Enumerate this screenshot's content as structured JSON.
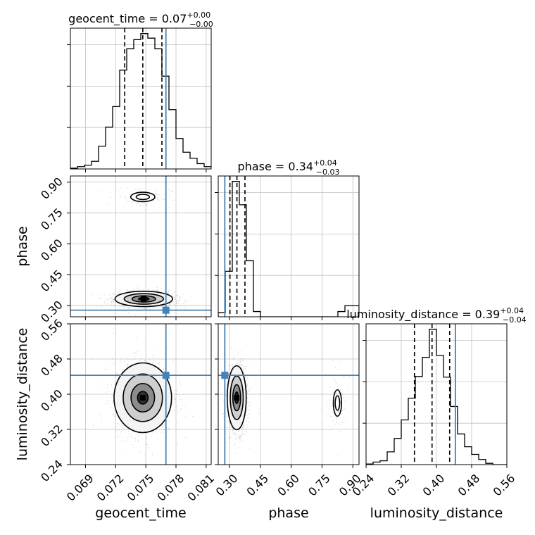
{
  "chart_data": {
    "type": "corner",
    "parameters": [
      "geocent_time",
      "phase",
      "luminosity_distance"
    ],
    "axis_labels": {
      "geocent_time": "geocent_time",
      "phase": "phase",
      "luminosity_distance": "luminosity_distance"
    },
    "titles": [
      {
        "param": "geocent_time",
        "prefix": "geocent_time = 0.07",
        "plus": "+0.00",
        "minus": "−0.00"
      },
      {
        "param": "phase",
        "prefix": "phase = 0.34",
        "plus": "+0.04",
        "minus": "−0.03"
      },
      {
        "param": "luminosity_distance",
        "prefix": "luminosity_distance = 0.39",
        "plus": "+0.04",
        "minus": "−0.04"
      }
    ],
    "ranges": {
      "geocent_time": [
        0.0675,
        0.0815
      ],
      "phase": [
        0.245,
        0.93
      ],
      "luminosity_distance": [
        0.24,
        0.56
      ]
    },
    "ticks": {
      "geocent_time": [
        0.069,
        0.072,
        0.075,
        0.078,
        0.081
      ],
      "phase": [
        0.3,
        0.45,
        0.6,
        0.75,
        0.9
      ],
      "luminosity_distance": [
        0.24,
        0.32,
        0.4,
        0.48,
        0.56
      ]
    },
    "tick_labels": {
      "geocent_time": [
        "0.069",
        "0.072",
        "0.075",
        "0.078",
        "0.081"
      ],
      "phase": [
        "0.30",
        "0.45",
        "0.60",
        "0.75",
        "0.90"
      ],
      "luminosity_distance": [
        "0.24",
        "0.32",
        "0.40",
        "0.48",
        "0.56"
      ]
    },
    "truths": {
      "geocent_time": 0.077,
      "phase": 0.277,
      "luminosity_distance": 0.443
    },
    "quantiles": {
      "geocent_time": [
        0.0729,
        0.0747,
        0.0766
      ],
      "phase": [
        0.302,
        0.336,
        0.375
      ],
      "luminosity_distance": [
        0.35,
        0.39,
        0.43
      ]
    },
    "histograms": {
      "geocent_time": {
        "edges": [
          0.0675,
          0.0815
        ],
        "counts": [
          1,
          3,
          5,
          10,
          30,
          55,
          82,
          130,
          158,
          170,
          178,
          172,
          158,
          122,
          78,
          40,
          22,
          14,
          7,
          3
        ]
      },
      "phase": {
        "edges": [
          0.245,
          0.93
        ],
        "counts": [
          7,
          78,
          232,
          192,
          96,
          9,
          0,
          0,
          0,
          0,
          0,
          0,
          0,
          0,
          0,
          0,
          0,
          9,
          19,
          19
        ]
      },
      "luminosity_distance": {
        "edges": [
          0.24,
          0.56
        ],
        "counts": [
          1,
          4,
          6,
          20,
          41,
          70,
          104,
          138,
          168,
          212,
          171,
          137,
          91,
          48,
          28,
          16,
          8,
          2,
          0,
          0
        ]
      }
    },
    "clusters": [
      {
        "x": "geocent_time",
        "y": "phase",
        "mx": 0.0748,
        "my": 0.332,
        "sx": 0.0013,
        "sy": 0.017,
        "weight": 0.93
      },
      {
        "x": "geocent_time",
        "y": "phase",
        "mx": 0.0747,
        "my": 0.828,
        "sx": 0.0012,
        "sy": 0.023,
        "weight": 0.07
      },
      {
        "x": "geocent_time",
        "y": "luminosity_distance",
        "mx": 0.0747,
        "my": 0.392,
        "sx": 0.0013,
        "sy": 0.036,
        "weight": 1.0
      },
      {
        "x": "phase",
        "y": "luminosity_distance",
        "mx": 0.335,
        "my": 0.392,
        "sx": 0.021,
        "sy": 0.033,
        "weight": 0.93
      },
      {
        "x": "phase",
        "y": "luminosity_distance",
        "mx": 0.825,
        "my": 0.38,
        "sx": 0.02,
        "sy": 0.03,
        "weight": 0.07
      }
    ],
    "colors": {
      "truth": "#4682b4",
      "hist": "#000000",
      "points": "#7f7f7f",
      "grid": "#c0c0c0"
    },
    "grid": true
  }
}
